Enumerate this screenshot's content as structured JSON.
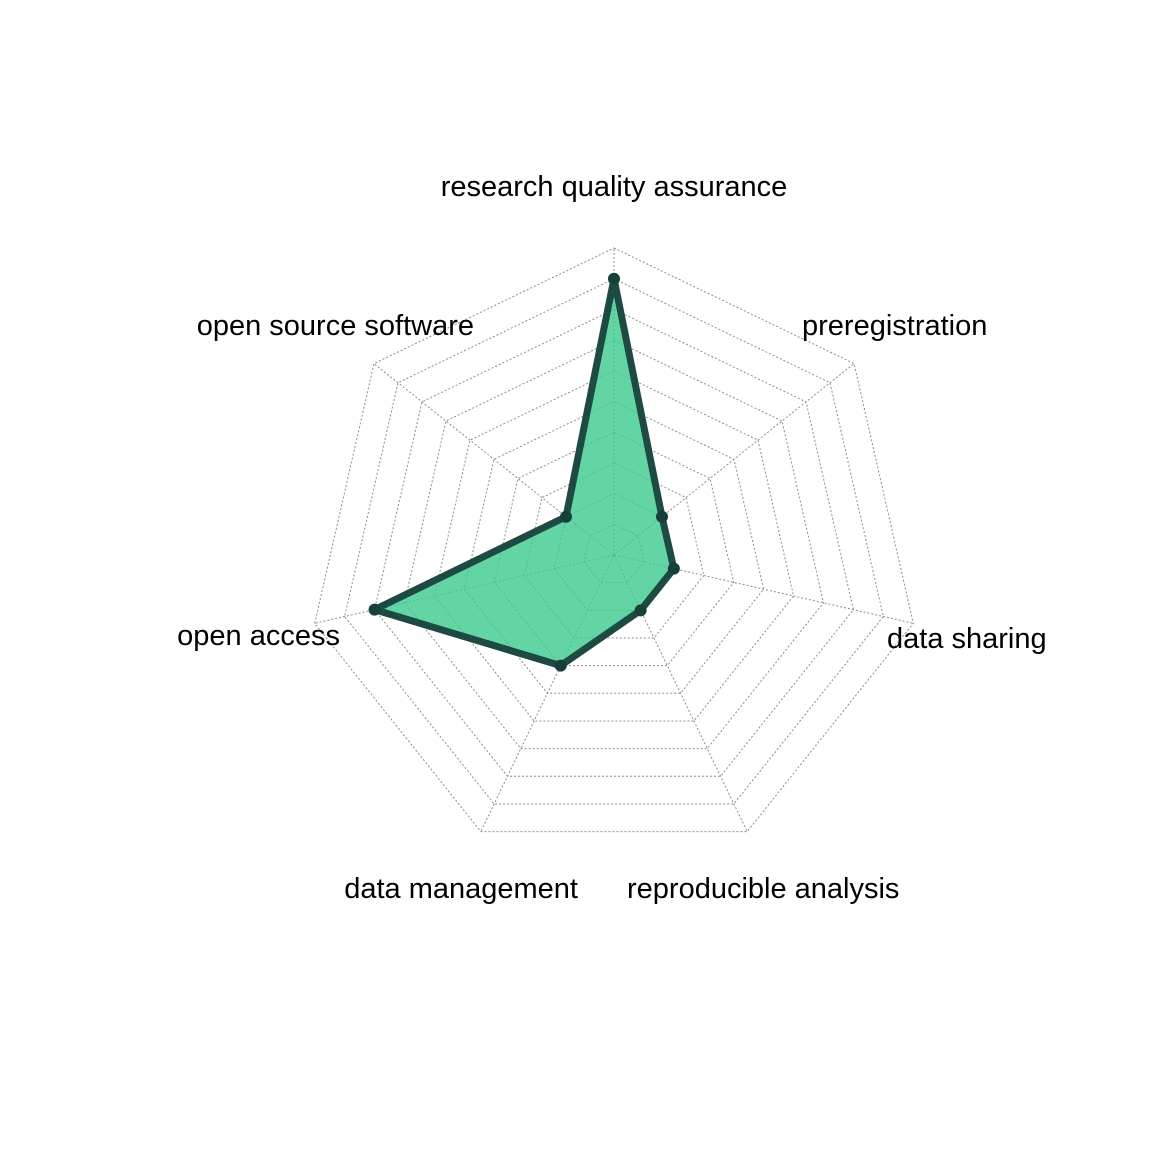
{
  "chart_data": {
    "type": "radar",
    "title": "",
    "axes": [
      "research quality assurance",
      "preregistration",
      "data sharing",
      "reproducible analysis",
      "data management",
      "open access",
      "open source software"
    ],
    "series": [
      {
        "values": [
          0.9,
          0.2,
          0.2,
          0.2,
          0.4,
          0.8,
          0.2
        ]
      }
    ],
    "range": [
      0,
      1
    ],
    "grid_levels": 10,
    "grid": true,
    "legend": "none",
    "colors": {
      "fill": "#3ccb8f",
      "fill_opacity": 0.8,
      "stroke": "#1e4a44",
      "points": "#17403a",
      "grid": "#8c8c8c",
      "text": "#000000"
    }
  }
}
